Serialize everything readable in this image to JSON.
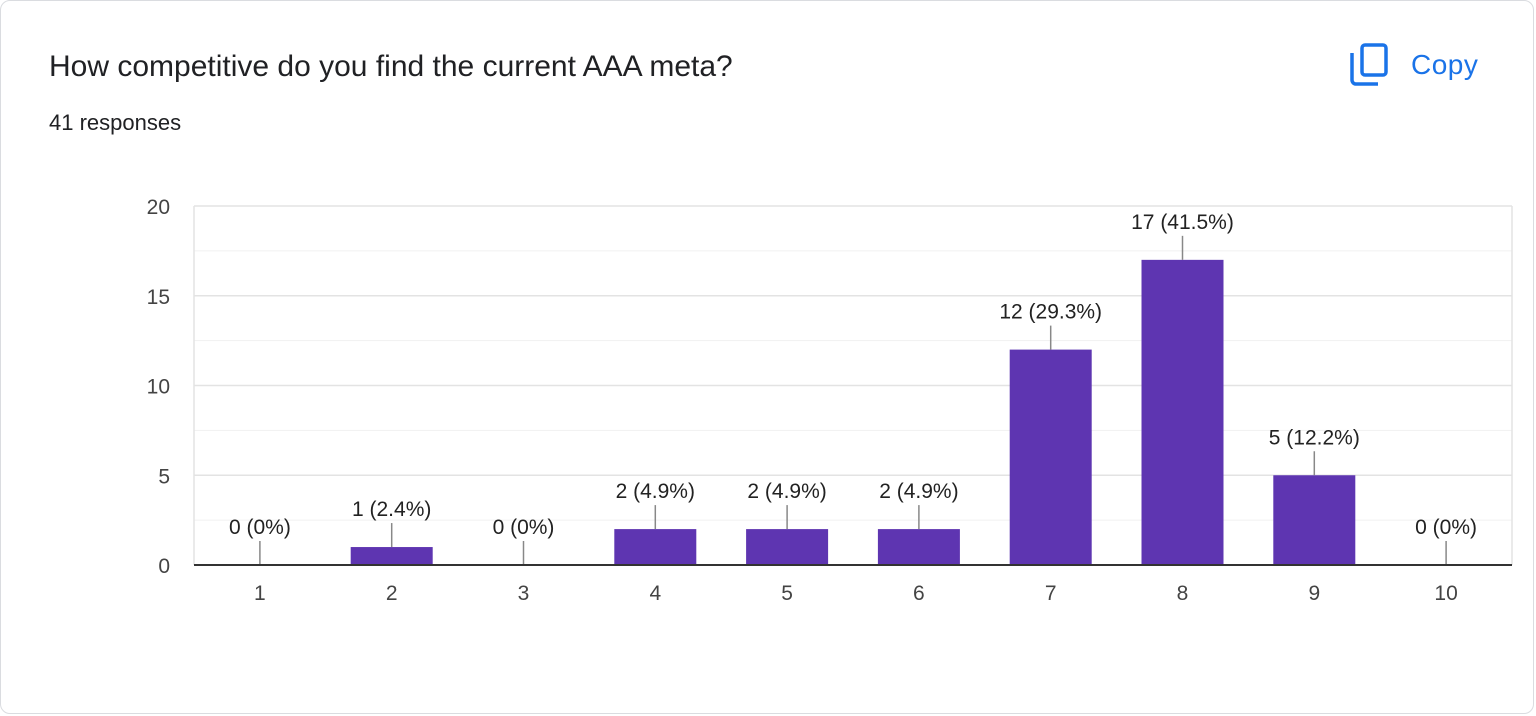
{
  "card": {
    "title": "How competitive do you find the current AAA meta?",
    "responses": "41 responses",
    "copy_label": "Copy",
    "copy_icon": "copy-icon"
  },
  "colors": {
    "bar": "#5e35b1",
    "accent": "#1a73e8"
  },
  "chart_data": {
    "type": "bar",
    "title": "",
    "xlabel": "",
    "ylabel": "",
    "categories": [
      "1",
      "2",
      "3",
      "4",
      "5",
      "6",
      "7",
      "8",
      "9",
      "10"
    ],
    "values": [
      0,
      1,
      0,
      2,
      2,
      2,
      12,
      17,
      5,
      0
    ],
    "data_labels": [
      "0 (0%)",
      "1 (2.4%)",
      "0 (0%)",
      "2 (4.9%)",
      "2 (4.9%)",
      "2 (4.9%)",
      "12 (29.3%)",
      "17 (41.5%)",
      "5 (12.2%)",
      "0 (0%)"
    ],
    "ylim": [
      0,
      20
    ],
    "yticks": [
      0,
      5,
      10,
      15,
      20
    ],
    "grid": true,
    "legend": "none"
  }
}
